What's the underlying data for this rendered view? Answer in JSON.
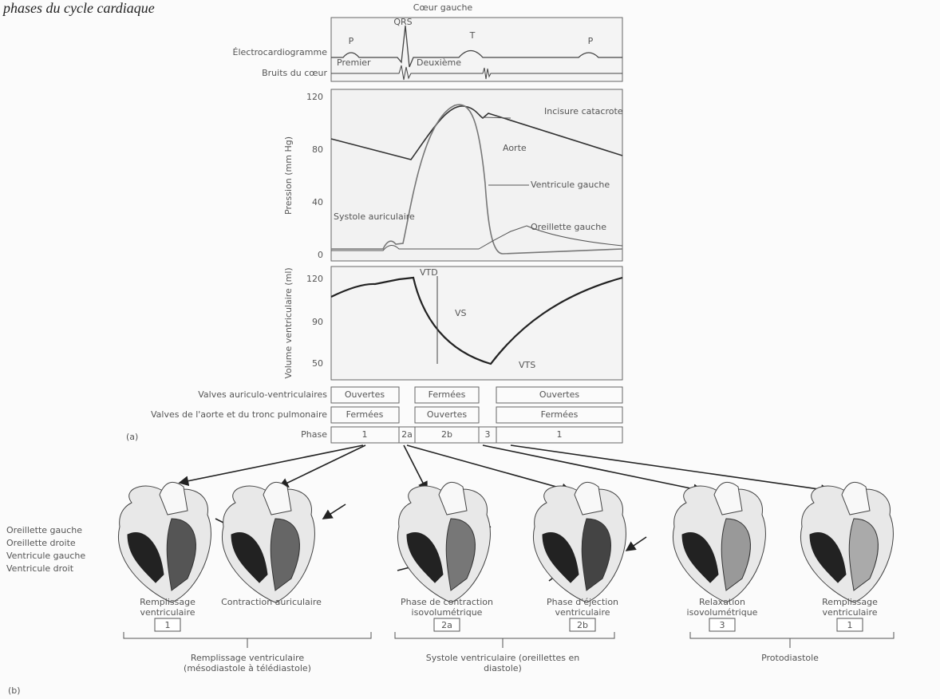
{
  "title": "phases du cycle cardiaque",
  "top_label": "Cœur gauche",
  "ecg": {
    "row_labels": [
      "Électrocardiogramme",
      "Bruits du cœur"
    ],
    "waves": [
      "P",
      "QRS",
      "T",
      "P"
    ],
    "sounds": [
      "Premier",
      "Deuxième"
    ]
  },
  "pressure": {
    "axis_label": "Pression (mm Hg)",
    "ticks": [
      "120",
      "80",
      "40",
      "0"
    ],
    "labels": [
      "Incisure catacrote",
      "Aorte",
      "Ventricule gauche",
      "Oreillette gauche",
      "Systole auriculaire"
    ]
  },
  "volume": {
    "axis_label": "Volume ventriculaire (ml)",
    "ticks": [
      "120",
      "90",
      "50"
    ],
    "labels": [
      "VTD",
      "VS",
      "VTS"
    ]
  },
  "table": {
    "row_labels": [
      "Valves auriculo-ventriculaires",
      "Valves de l'aorte et du tronc pulmonaire",
      "Phase"
    ],
    "rows": [
      [
        "Ouvertes",
        "Fermées",
        "Ouvertes"
      ],
      [
        "Fermées",
        "Ouvertes",
        "Fermées"
      ],
      [
        "1",
        "2a",
        "2b",
        "3",
        "1"
      ]
    ]
  },
  "panel_a": "(a)",
  "panel_b": "(b)",
  "heart_labels": [
    "Oreillette gauche",
    "Oreillette droite",
    "Ventricule gauche",
    "Ventricule droit"
  ],
  "stages": [
    {
      "caption": "Remplissage ventriculaire",
      "number": "1"
    },
    {
      "caption": "Contraction auriculaire",
      "number": ""
    },
    {
      "caption": "Phase de contraction isovolumétrique",
      "number": "2a"
    },
    {
      "caption": "Phase d'éjection ventriculaire",
      "number": "2b"
    },
    {
      "caption": "Relaxation isovolumétrique",
      "number": "3"
    },
    {
      "caption": "Remplissage ventriculaire",
      "number": "1"
    }
  ],
  "groups": [
    "Remplissage ventriculaire (mésodiastole à télédiastole)",
    "Systole ventriculaire (oreillettes en diastole)",
    "Protodiastole"
  ]
}
